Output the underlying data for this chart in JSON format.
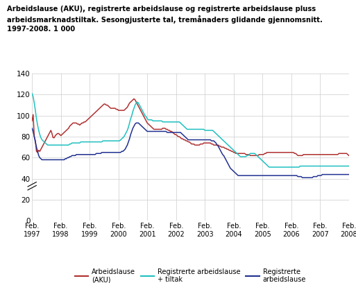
{
  "title_line1": "Arbeidslause (AKU), registrerte arbeidslause og registrerte arbeidslause pluss",
  "title_line2": "arbeidsmarknadstiltak. Sesongjusterte tal, tremånaders glidande gjennomsnitt.",
  "title_line3": "1997-2008. 1 000",
  "ylim": [
    0,
    140
  ],
  "yticks": [
    0,
    20,
    40,
    60,
    80,
    100,
    120,
    140
  ],
  "colors": {
    "aku": "#b03030",
    "tiltak": "#20c0c0",
    "registrerte": "#203090"
  },
  "legend": [
    {
      "label": "Arbeidslause\n(AKU)",
      "color": "#b03030"
    },
    {
      "label": "Registrerte arbeidslause\n+ tiltak",
      "color": "#20c0c0"
    },
    {
      "label": "Registrerte\narbeidslause",
      "color": "#203090"
    }
  ],
  "xtick_labels": [
    "Feb.\n1997",
    "Feb.\n1998",
    "Feb.\n1999",
    "Feb.\n2000",
    "Feb.\n2001",
    "Feb.\n2002",
    "Feb.\n2003",
    "Feb.\n2004",
    "Feb.\n2005",
    "Feb.\n2006",
    "Feb.\n2007",
    "Feb.\n2008"
  ],
  "aku": [
    95,
    101,
    80,
    76,
    66,
    65,
    67,
    66,
    68,
    70,
    72,
    74,
    76,
    78,
    80,
    82,
    84,
    86,
    83,
    79,
    79,
    81,
    82,
    83,
    83,
    82,
    81,
    82,
    83,
    84,
    85,
    86,
    87,
    88,
    90,
    91,
    92,
    93,
    93,
    93,
    93,
    92,
    92,
    91,
    92,
    93,
    93,
    94,
    94,
    95,
    96,
    97,
    98,
    99,
    100,
    101,
    102,
    103,
    104,
    105,
    106,
    107,
    108,
    109,
    110,
    111,
    111,
    110,
    110,
    109,
    108,
    107,
    107,
    107,
    107,
    107,
    106,
    106,
    105,
    105,
    105,
    105,
    105,
    105,
    106,
    107,
    108,
    110,
    112,
    113,
    114,
    115,
    116,
    115,
    113,
    111,
    109,
    107,
    105,
    103,
    101,
    99,
    97,
    95,
    93,
    92,
    91,
    90,
    89,
    88,
    87,
    87,
    87,
    87,
    87,
    87,
    87,
    87,
    88,
    88,
    88,
    87,
    87,
    86,
    86,
    85,
    85,
    84,
    83,
    82,
    82,
    81,
    80,
    80,
    79,
    78,
    78,
    77,
    77,
    76,
    76,
    75,
    75,
    74,
    73,
    73,
    73,
    72,
    72,
    72,
    72,
    72,
    73,
    73,
    73,
    74,
    74,
    74,
    74,
    74,
    74,
    74,
    73,
    73,
    72,
    72,
    72,
    72,
    72,
    71,
    71,
    70,
    70,
    70,
    69,
    69,
    68,
    68,
    67,
    67,
    66,
    66,
    65,
    65,
    64,
    64,
    64,
    64,
    64,
    64,
    64,
    64,
    64,
    63,
    63,
    63,
    63,
    62,
    62,
    62,
    62,
    62,
    62,
    62,
    62,
    63,
    63,
    63,
    63,
    63,
    64,
    64,
    65,
    65,
    65,
    65,
    65,
    65,
    65,
    65,
    65,
    65,
    65,
    65,
    65,
    65,
    65,
    65,
    65,
    65,
    65,
    65,
    65,
    65,
    65,
    65,
    65,
    64,
    64,
    63,
    62,
    62,
    62,
    62,
    62,
    63,
    63,
    63,
    63,
    63,
    63,
    63,
    63,
    63,
    63,
    63,
    63,
    63,
    63,
    63,
    63,
    63,
    63,
    63,
    63,
    63,
    63,
    63,
    63,
    63,
    63,
    63,
    63,
    63,
    63,
    63,
    63,
    64,
    64,
    64,
    64,
    64,
    64,
    64,
    64,
    63,
    62
  ],
  "tiltak": [
    121,
    118,
    112,
    105,
    97,
    91,
    86,
    82,
    79,
    77,
    76,
    75,
    74,
    73,
    72,
    72,
    72,
    72,
    72,
    72,
    72,
    72,
    72,
    72,
    72,
    72,
    72,
    72,
    72,
    72,
    72,
    72,
    72,
    72,
    73,
    73,
    74,
    74,
    74,
    74,
    74,
    74,
    74,
    74,
    75,
    75,
    75,
    75,
    75,
    75,
    75,
    75,
    75,
    75,
    75,
    75,
    75,
    75,
    75,
    75,
    75,
    75,
    75,
    75,
    76,
    76,
    76,
    76,
    76,
    76,
    76,
    76,
    76,
    76,
    76,
    76,
    76,
    76,
    76,
    76,
    77,
    78,
    79,
    80,
    82,
    84,
    86,
    89,
    93,
    97,
    100,
    104,
    107,
    110,
    112,
    113,
    112,
    110,
    108,
    106,
    104,
    102,
    100,
    99,
    97,
    96,
    96,
    96,
    96,
    95,
    95,
    95,
    95,
    95,
    95,
    95,
    95,
    95,
    94,
    94,
    94,
    94,
    94,
    94,
    94,
    94,
    94,
    94,
    94,
    94,
    94,
    94,
    94,
    94,
    93,
    92,
    91,
    90,
    89,
    88,
    87,
    87,
    87,
    87,
    87,
    87,
    87,
    87,
    87,
    87,
    87,
    87,
    87,
    87,
    87,
    87,
    86,
    86,
    86,
    86,
    86,
    86,
    86,
    86,
    85,
    84,
    83,
    82,
    81,
    80,
    79,
    78,
    77,
    76,
    75,
    74,
    73,
    72,
    71,
    70,
    69,
    68,
    67,
    66,
    65,
    64,
    63,
    62,
    61,
    61,
    61,
    61,
    61,
    61,
    62,
    62,
    63,
    64,
    64,
    64,
    64,
    64,
    63,
    62,
    61,
    60,
    59,
    58,
    57,
    56,
    55,
    54,
    53,
    52,
    51,
    51,
    51,
    51,
    51,
    51,
    51,
    51,
    51,
    51,
    51,
    51,
    51,
    51,
    51,
    51,
    51,
    51,
    51,
    51,
    51,
    51,
    51,
    51,
    51,
    51,
    51,
    51,
    52,
    52,
    52,
    52,
    52,
    52,
    52,
    52,
    52,
    52,
    52,
    52,
    52,
    52,
    52,
    52,
    52,
    52,
    52,
    52,
    52,
    52,
    52,
    52,
    52,
    52,
    52,
    52,
    52,
    52,
    52,
    52,
    52,
    52,
    52,
    52,
    52,
    52,
    52,
    52,
    52,
    52,
    52,
    52,
    52
  ],
  "registrerte": [
    88,
    85,
    80,
    75,
    70,
    66,
    62,
    60,
    59,
    58,
    58,
    58,
    58,
    58,
    58,
    58,
    58,
    58,
    58,
    58,
    58,
    58,
    58,
    58,
    58,
    58,
    58,
    58,
    58,
    58,
    59,
    59,
    60,
    60,
    61,
    61,
    62,
    62,
    62,
    62,
    63,
    63,
    63,
    63,
    63,
    63,
    63,
    63,
    63,
    63,
    63,
    63,
    63,
    63,
    63,
    63,
    63,
    63,
    64,
    64,
    64,
    64,
    64,
    65,
    65,
    65,
    65,
    65,
    65,
    65,
    65,
    65,
    65,
    65,
    65,
    65,
    65,
    65,
    65,
    65,
    65,
    66,
    66,
    67,
    68,
    70,
    72,
    75,
    78,
    82,
    85,
    88,
    90,
    92,
    93,
    93,
    93,
    92,
    91,
    90,
    89,
    88,
    87,
    86,
    85,
    85,
    85,
    85,
    85,
    85,
    85,
    85,
    85,
    85,
    85,
    85,
    85,
    85,
    85,
    85,
    85,
    85,
    84,
    84,
    84,
    84,
    84,
    84,
    84,
    84,
    84,
    84,
    84,
    84,
    84,
    83,
    82,
    81,
    80,
    79,
    78,
    77,
    77,
    77,
    77,
    77,
    77,
    77,
    77,
    77,
    77,
    77,
    77,
    77,
    77,
    77,
    77,
    77,
    77,
    77,
    77,
    77,
    76,
    76,
    76,
    75,
    74,
    72,
    71,
    69,
    67,
    65,
    63,
    62,
    60,
    58,
    56,
    54,
    52,
    50,
    49,
    48,
    47,
    46,
    45,
    44,
    43,
    43,
    43,
    43,
    43,
    43,
    43,
    43,
    43,
    43,
    43,
    43,
    43,
    43,
    43,
    43,
    43,
    43,
    43,
    43,
    43,
    43,
    43,
    43,
    43,
    43,
    43,
    43,
    43,
    43,
    43,
    43,
    43,
    43,
    43,
    43,
    43,
    43,
    43,
    43,
    43,
    43,
    43,
    43,
    43,
    43,
    43,
    43,
    43,
    43,
    43,
    43,
    43,
    43,
    42,
    42,
    42,
    42,
    41,
    41,
    41,
    41,
    41,
    41,
    41,
    41,
    41,
    41,
    42,
    42,
    42,
    42,
    43,
    43,
    43,
    43,
    44,
    44,
    44,
    44,
    44,
    44,
    44,
    44,
    44,
    44,
    44,
    44,
    44,
    44,
    44,
    44,
    44,
    44,
    44,
    44,
    44,
    44,
    44,
    44,
    44
  ]
}
